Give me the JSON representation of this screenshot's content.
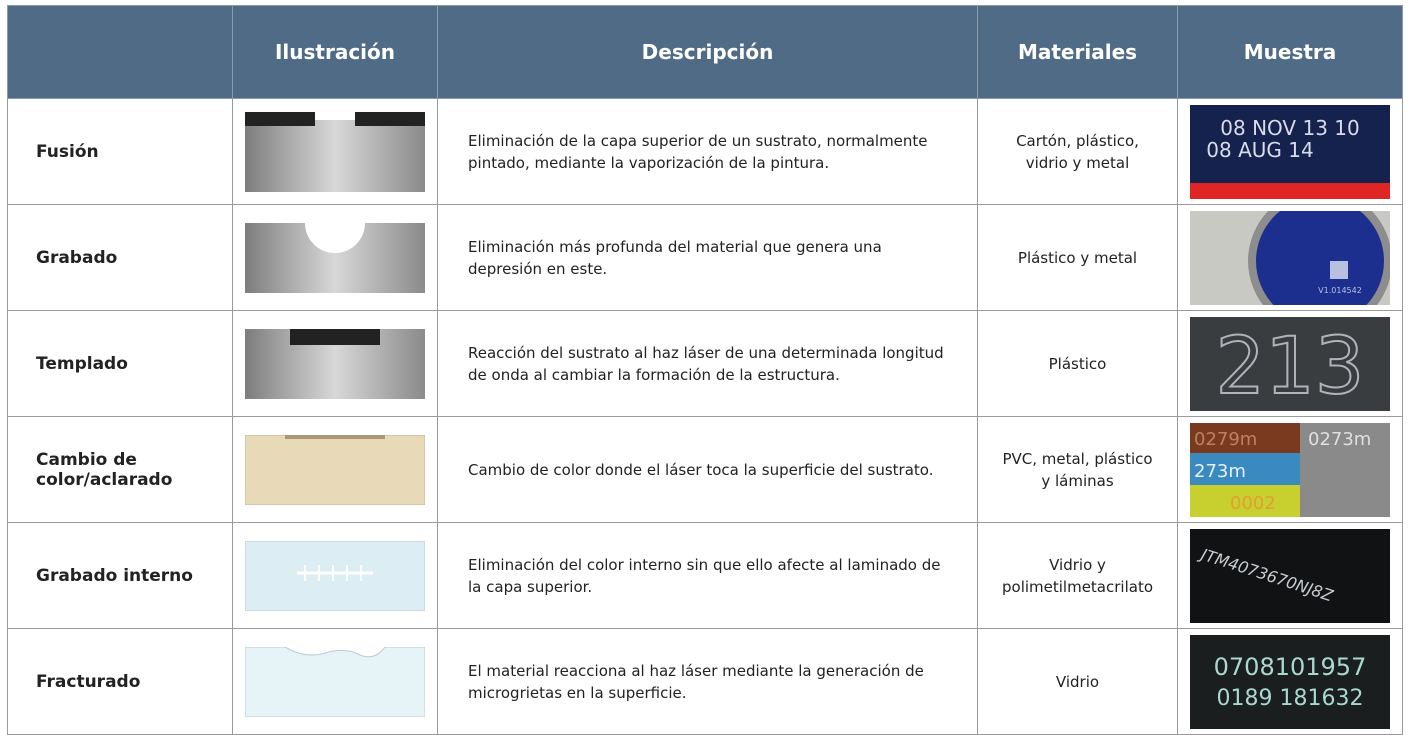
{
  "table": {
    "headers": [
      "Ilustración",
      "Descripción",
      "Materiales",
      "Muestra"
    ],
    "rows": [
      {
        "name": "Fusión",
        "description": "Eliminación de la capa superior de un sustrato, normalmente pintado, mediante la vaporización de la pintura.",
        "materials": "Cartón, plástico, vidrio y metal",
        "sample_text": [
          "08 NOV 13 10",
          "08 AUG 14"
        ]
      },
      {
        "name": "Grabado",
        "description": "Eliminación más profunda del material que genera una depresión en este.",
        "materials": "Plástico y metal",
        "sample_text": [
          "V1.014542"
        ]
      },
      {
        "name": "Templado",
        "description": "Reacción del sustrato al haz láser de una determinada longitud de onda al cambiar la formación de la estructura.",
        "materials": "Plástico",
        "sample_text": [
          "213"
        ]
      },
      {
        "name": "Cambio de color/aclarado",
        "description": "Cambio de color donde el láser toca la superficie del sustrato.",
        "materials": "PVC, metal, plástico y láminas",
        "sample_text": [
          "0279m",
          "0273m",
          "273m",
          "0002"
        ]
      },
      {
        "name": "Grabado interno",
        "description": "Eliminación del color interno sin que ello afecte al laminado de la capa superior.",
        "materials": "Vidrio y polimetilmetacrilato",
        "sample_text": [
          "JTM4073670NJ8Z"
        ]
      },
      {
        "name": "Fracturado",
        "description": "El material reacciona al haz láser mediante la generación de microgrietas en la superficie.",
        "materials": "Vidrio",
        "sample_text": [
          "0708101957",
          "0189 181632"
        ]
      }
    ]
  }
}
